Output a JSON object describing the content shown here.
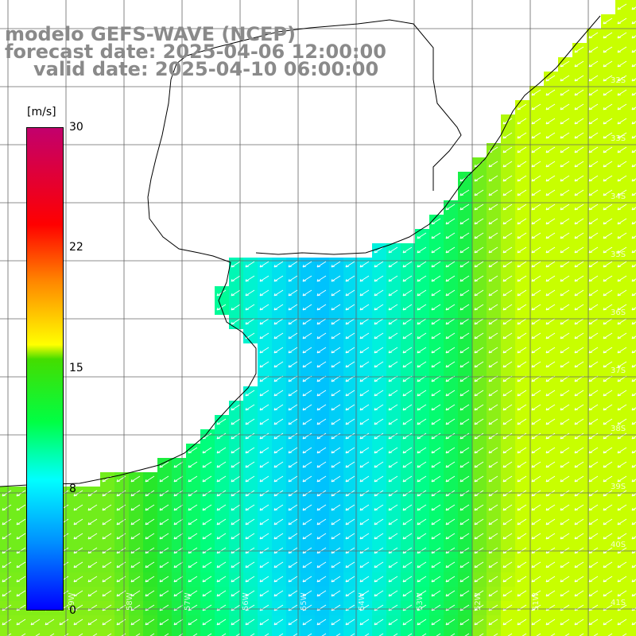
{
  "title": {
    "model": "modelo GEFS-WAVE (NCEP)",
    "forecast": "forecast date: 2025-04-06 12:00:00",
    "valid": "valid date: 2025-04-10 06:00:00"
  },
  "colorbar": {
    "unit": "[m/s]",
    "ticks": [
      "30",
      "22",
      "15",
      "8",
      "0"
    ],
    "colors": [
      "#0000ff",
      "#0090ff",
      "#00ffff",
      "#00ff44",
      "#44dd00",
      "#ffff00",
      "#ff8800",
      "#ff0000",
      "#c2006d"
    ]
  },
  "grid": {
    "lat_labels": [
      "32S",
      "33S",
      "34S",
      "35S",
      "36S",
      "37S",
      "38S",
      "39S",
      "40S",
      "41S"
    ],
    "lon_labels": [
      "59W",
      "58W",
      "57W",
      "56W",
      "55W",
      "54W",
      "53W",
      "52W",
      "51W"
    ]
  },
  "field": {
    "name": "wind speed",
    "vector_direction": "towards-south-west"
  }
}
